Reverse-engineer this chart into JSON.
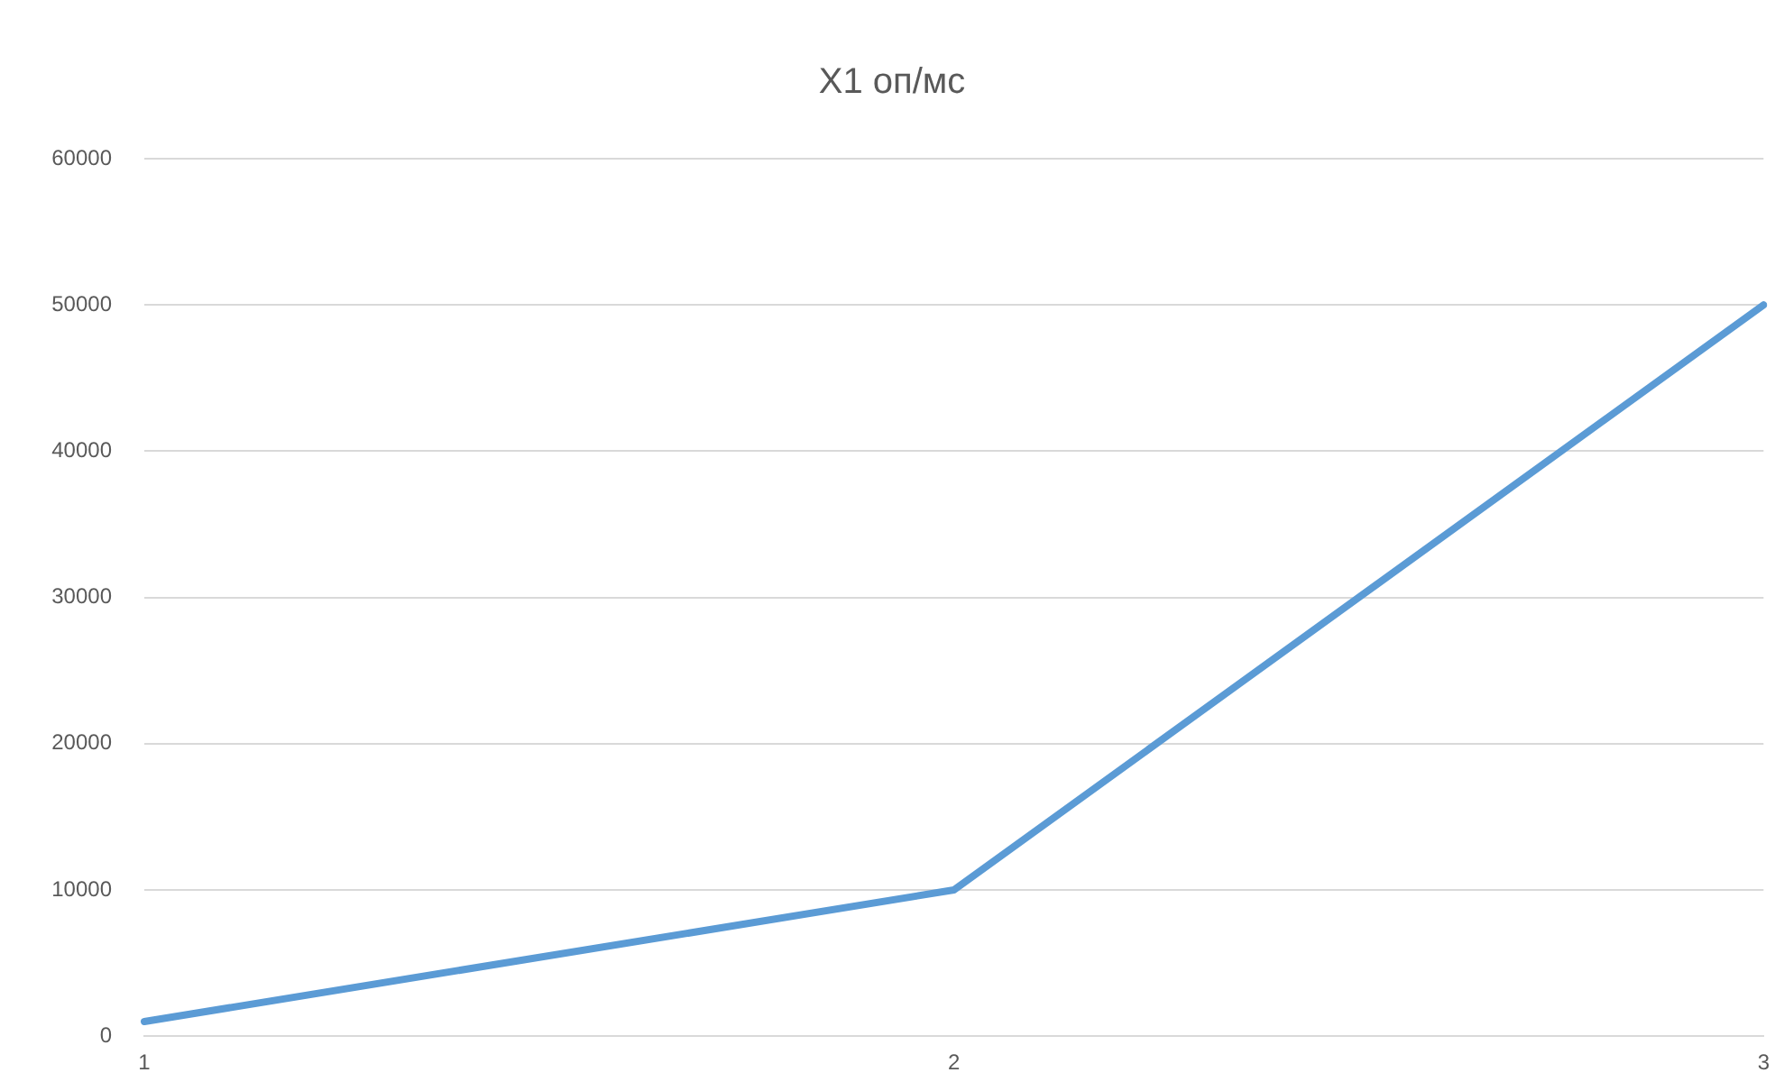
{
  "chart_data": {
    "type": "line",
    "title": "X1 оп/мс",
    "categories": [
      "1",
      "2",
      "3"
    ],
    "series": [
      {
        "color": "#5b9bd5",
        "values": [
          1000,
          10000,
          50000
        ]
      }
    ],
    "ylim": [
      0,
      60000
    ],
    "yticks": [
      0,
      10000,
      20000,
      30000,
      40000,
      50000,
      60000
    ],
    "grid": "y",
    "legend": false,
    "marker": "none"
  }
}
